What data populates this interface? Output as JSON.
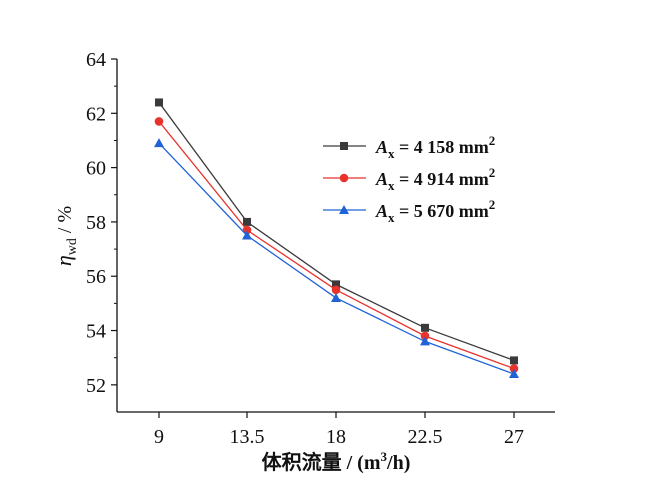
{
  "chart_data": {
    "type": "line",
    "x": [
      9,
      13.5,
      18,
      22.5,
      27
    ],
    "x_ticks": [
      "9",
      "13.5",
      "18",
      "22.5",
      "27"
    ],
    "xlabel": {
      "text": "体积流量 / (m",
      "sup": "3",
      "tail": "/h)"
    },
    "ylabel": {
      "symbol": "η",
      "sub": "wd",
      "unit": " / %"
    },
    "ylim": [
      51,
      64
    ],
    "y_ticks": [
      52,
      54,
      56,
      58,
      60,
      62,
      64
    ],
    "grid": false,
    "legend_position": "upper-right",
    "series": [
      {
        "name_var": "A",
        "name_sub": "x",
        "name_value": " = 4 158 mm",
        "name_sup": "2",
        "color": "#3a3a3a",
        "marker": "square",
        "values": [
          62.4,
          58.0,
          55.7,
          54.1,
          52.9
        ]
      },
      {
        "name_var": "A",
        "name_sub": "x",
        "name_value": " = 4 914 mm",
        "name_sup": "2",
        "color": "#e8322c",
        "marker": "circle",
        "values": [
          61.7,
          57.7,
          55.5,
          53.8,
          52.6
        ]
      },
      {
        "name_var": "A",
        "name_sub": "x",
        "name_value": " = 5 670 mm",
        "name_sup": "2",
        "color": "#1f63d6",
        "marker": "triangle",
        "values": [
          60.9,
          57.5,
          55.2,
          53.6,
          52.4
        ]
      }
    ]
  }
}
